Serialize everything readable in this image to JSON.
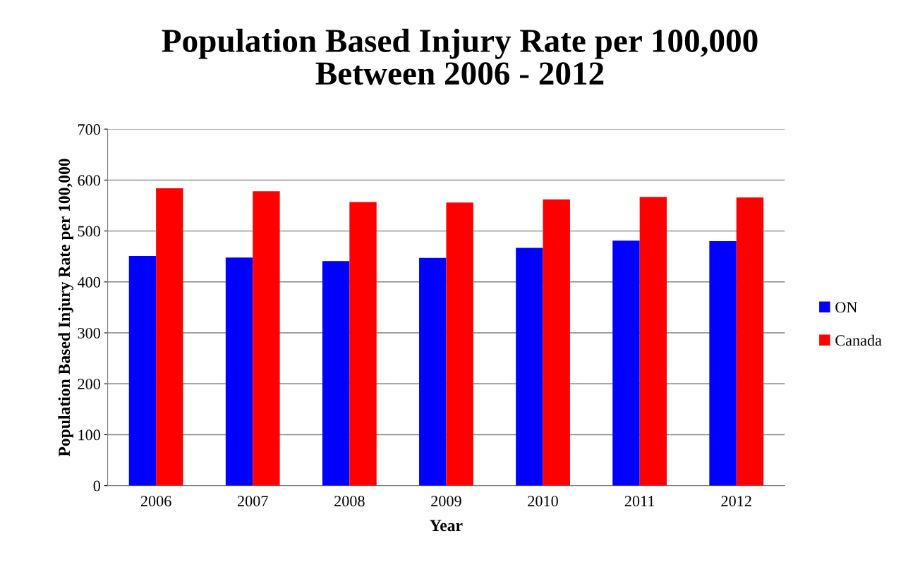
{
  "chart_data": {
    "type": "bar",
    "title": "Population Based Injury Rate per 100,000\nBetween 2006 - 2012",
    "xlabel": "Year",
    "ylabel": "Population Based Injury Rate per 100,000",
    "categories": [
      "2006",
      "2007",
      "2008",
      "2009",
      "2010",
      "2011",
      "2012"
    ],
    "series": [
      {
        "name": "ON",
        "color": "#0000ff",
        "values": [
          451,
          448,
          441,
          447,
          467,
          481,
          480
        ]
      },
      {
        "name": "Canada",
        "color": "#ff0000",
        "values": [
          584,
          578,
          557,
          556,
          562,
          567,
          566
        ]
      }
    ],
    "ylim": [
      0,
      700
    ],
    "yticks": [
      0,
      100,
      200,
      300,
      400,
      500,
      600,
      700
    ],
    "grid": "y",
    "legend": "right"
  }
}
